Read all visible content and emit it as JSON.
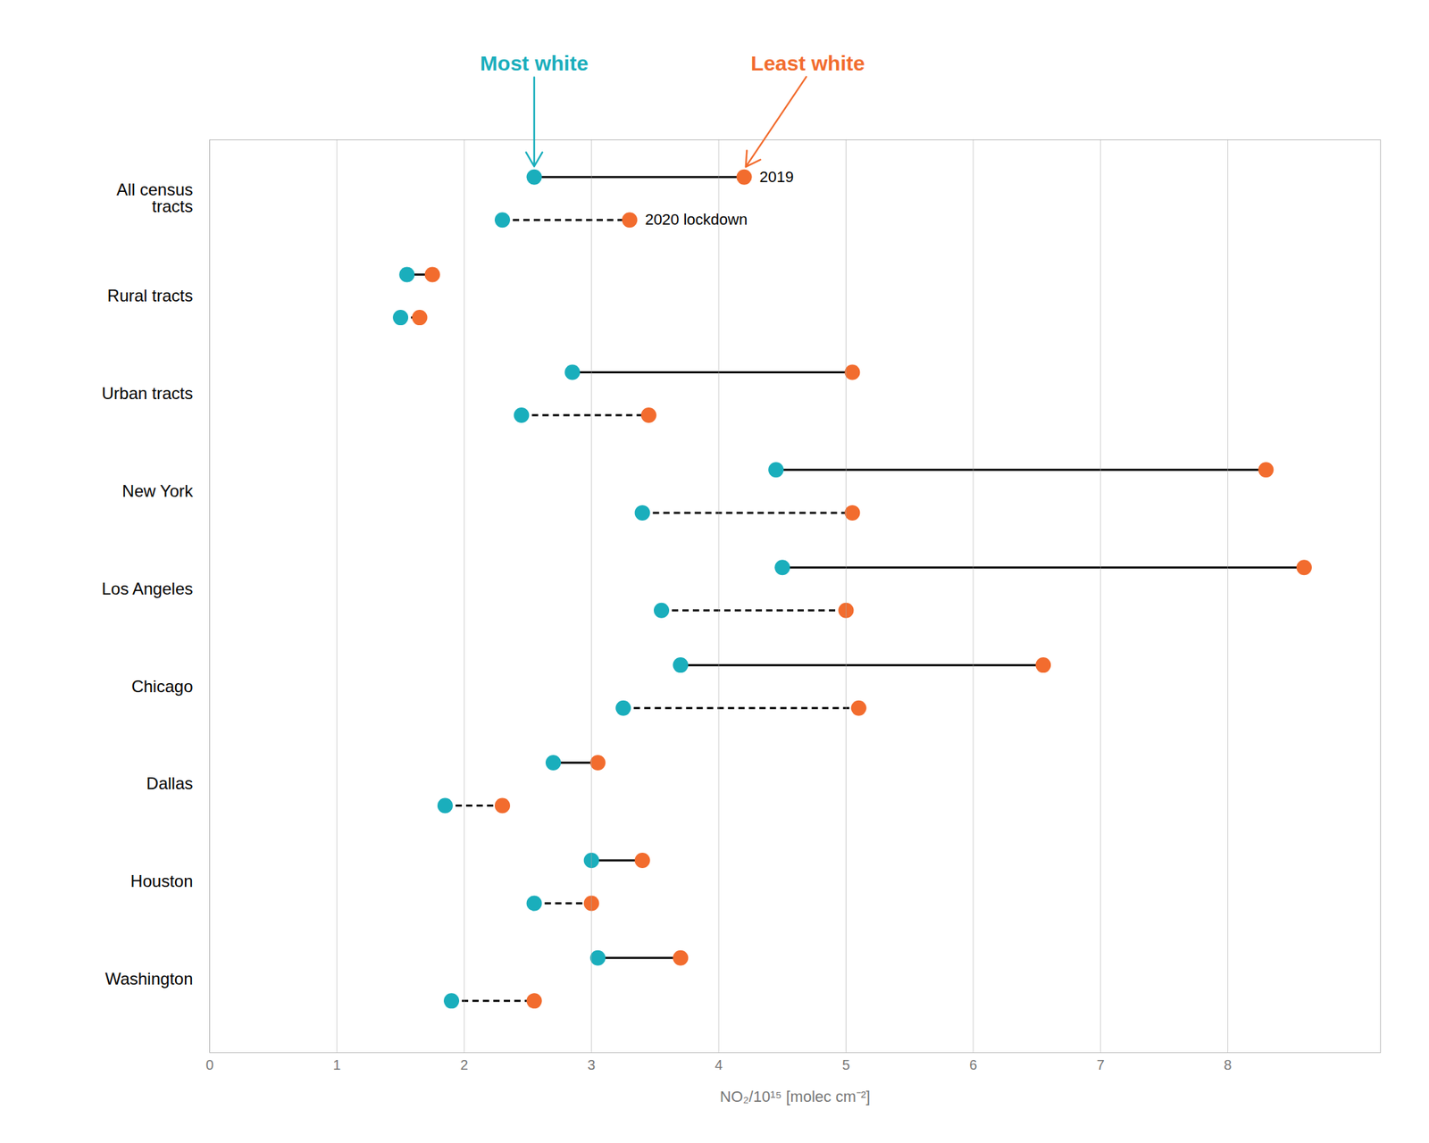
{
  "chart_data": {
    "type": "dumbbell",
    "categories": [
      "All census\ntracts",
      "Rural tracts",
      "Urban tracts",
      "New York",
      "Los Angeles",
      "Chicago",
      "Dallas",
      "Houston",
      "Washington"
    ],
    "ends": [
      {
        "name": "Most white",
        "color": "#1AAEBC"
      },
      {
        "name": "Least white",
        "color": "#F26C2E"
      }
    ],
    "series": [
      {
        "name": "2019",
        "line_style": "solid",
        "color": "#000000",
        "values": [
          [
            2.55,
            4.2
          ],
          [
            1.55,
            1.75
          ],
          [
            2.85,
            5.05
          ],
          [
            4.45,
            8.3
          ],
          [
            4.5,
            8.6
          ],
          [
            3.7,
            6.55
          ],
          [
            2.7,
            3.05
          ],
          [
            3.0,
            3.4
          ],
          [
            3.05,
            3.7
          ]
        ]
      },
      {
        "name": "2020 lockdown",
        "line_style": "dashed",
        "color": "#000000",
        "values": [
          [
            2.3,
            3.3
          ],
          [
            1.5,
            1.65
          ],
          [
            2.45,
            3.45
          ],
          [
            3.4,
            5.05
          ],
          [
            3.55,
            5.0
          ],
          [
            3.25,
            5.1
          ],
          [
            1.85,
            2.3
          ],
          [
            2.55,
            3.0
          ],
          [
            1.9,
            2.55
          ]
        ]
      }
    ],
    "xlabel": "NO₂/10¹⁵ [molec cm⁻²]",
    "xlim": [
      0,
      9.2
    ],
    "xticks": [
      0,
      1,
      2,
      3,
      4,
      5,
      6,
      7,
      8
    ],
    "grid": true
  }
}
